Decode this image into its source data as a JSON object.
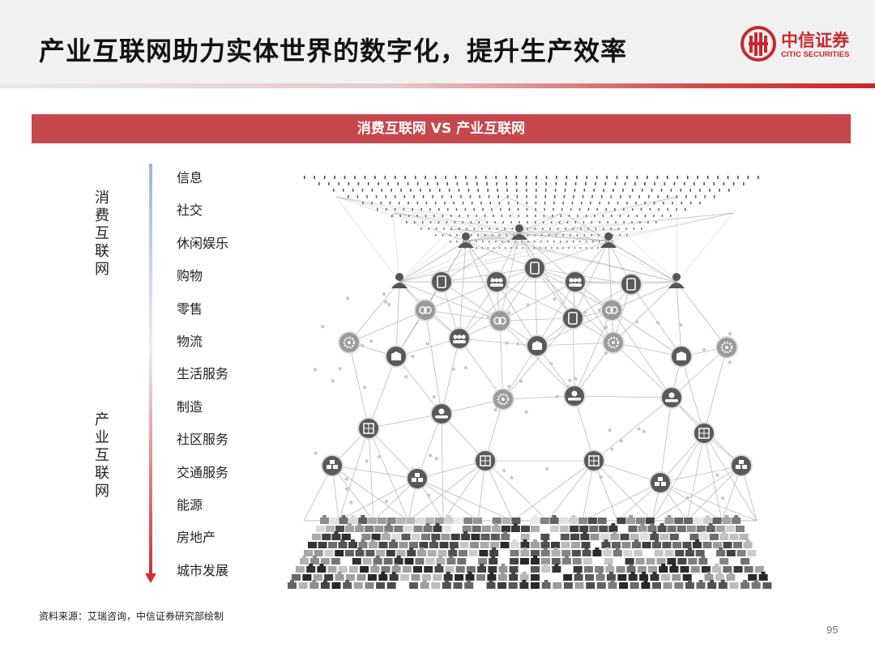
{
  "header": {
    "title": "产业互联网助力实体世界的数字化，提升生产效率",
    "logo_cn": "中信证券",
    "logo_en": "CITIC SECURITIES"
  },
  "banner": {
    "title": "消费互联网 VS 产业互联网"
  },
  "axis": {
    "top_label": "消费互联网",
    "bottom_label": "产业互联网"
  },
  "categories": [
    "信息",
    "社交",
    "休闲娱乐",
    "购物",
    "零售",
    "物流",
    "生活服务",
    "制造",
    "社区服务",
    "交通服务",
    "能源",
    "房地产",
    "城市发展"
  ],
  "footer": {
    "source": "资料来源：艾瑞咨询，中信证券研究部绘制",
    "page_number": "95"
  },
  "colors": {
    "brand_red": "#c8282e",
    "banner_red": "#c5484c",
    "axis_top": "#9fb6d6",
    "axis_bottom": "#d32f2f"
  },
  "illustration": {
    "icons": [
      "person-icon",
      "tablet-icon",
      "group-icon",
      "pretzel-icon",
      "gear-icon",
      "box-icon",
      "hand-coin-icon",
      "building-icon",
      "pallet-icon"
    ]
  }
}
